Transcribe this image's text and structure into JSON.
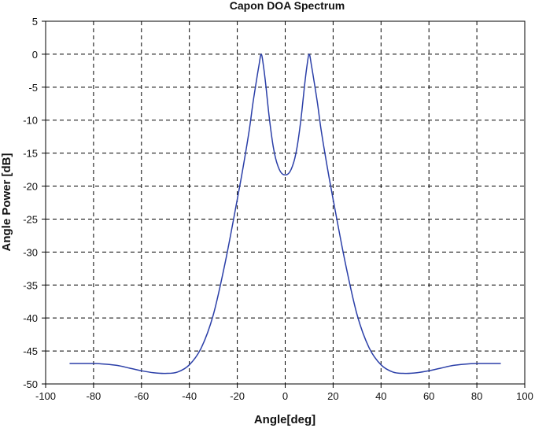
{
  "chart_data": {
    "type": "line",
    "title": "Capon DOA Spectrum",
    "xlabel": "Angle[deg]",
    "ylabel": "Angle Power [dB]",
    "xlim": [
      -100,
      100
    ],
    "ylim": [
      -50,
      5
    ],
    "xticks": [
      -100,
      -80,
      -60,
      -40,
      -20,
      0,
      20,
      40,
      60,
      80,
      100
    ],
    "yticks": [
      5,
      0,
      -5,
      -10,
      -15,
      -20,
      -25,
      -30,
      -35,
      -40,
      -45,
      -50
    ],
    "grid": true,
    "line_color": "#2b3fa8",
    "series": [
      {
        "x": [
          -90,
          -85,
          -80,
          -75,
          -70,
          -65,
          -60,
          -55,
          -50,
          -45,
          -40,
          -35,
          -30,
          -25,
          -20,
          -17.5,
          -15,
          -13.5,
          -12,
          -11,
          -10,
          -9,
          -8,
          -7,
          -6,
          -5,
          -4,
          -3,
          -2,
          -1,
          0,
          1,
          2,
          3,
          4,
          5,
          6,
          7,
          8,
          9,
          10,
          11,
          12,
          13.5,
          15,
          17.5,
          20,
          25,
          30,
          35,
          40,
          45,
          50,
          55,
          60,
          65,
          70,
          75,
          80,
          85,
          90
        ],
        "y": [
          -46.9,
          -46.9,
          -46.9,
          -47.0,
          -47.2,
          -47.6,
          -48.0,
          -48.3,
          -48.4,
          -48.2,
          -47.1,
          -44.5,
          -39.5,
          -31.5,
          -22.0,
          -17.0,
          -11.5,
          -7.5,
          -4.0,
          -1.8,
          0.0,
          -2.0,
          -5.0,
          -8.5,
          -11.5,
          -14.0,
          -15.8,
          -17.0,
          -17.8,
          -18.2,
          -18.3,
          -18.2,
          -17.8,
          -17.0,
          -15.8,
          -14.0,
          -11.5,
          -8.5,
          -5.0,
          -2.0,
          0.0,
          -1.8,
          -4.0,
          -7.5,
          -11.5,
          -17.0,
          -22.0,
          -31.5,
          -39.5,
          -44.5,
          -47.1,
          -48.2,
          -48.4,
          -48.3,
          -48.0,
          -47.6,
          -47.2,
          -47.0,
          -46.9,
          -46.9,
          -46.9
        ]
      }
    ]
  }
}
